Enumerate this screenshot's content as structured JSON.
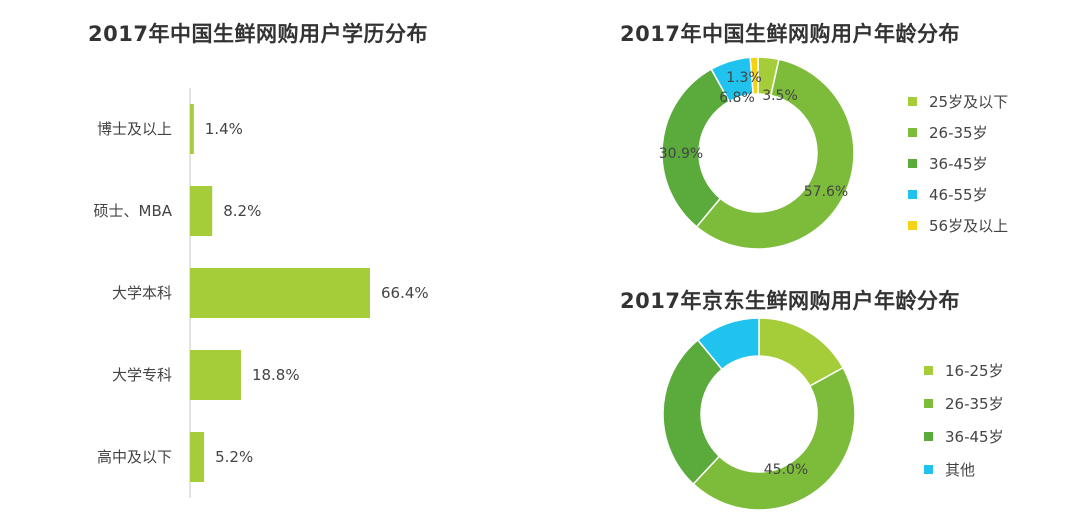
{
  "titles": {
    "edu": "2017年中国生鲜网购用户学历分布",
    "age_cn": "2017年中国生鲜网购用户年龄分布",
    "age_jd": "2017年京东生鲜网购用户年龄分布"
  },
  "colors": {
    "bar": "#a5cd39",
    "palette": [
      "#a5cd39",
      "#7dbb3a",
      "#5aaa3c",
      "#1fc3ee",
      "#f5d213"
    ]
  },
  "chart_data": [
    {
      "type": "bar",
      "orientation": "horizontal",
      "title": "2017年中国生鲜网购用户学历分布",
      "categories": [
        "博士及以上",
        "硕士、MBA",
        "大学本科",
        "大学专科",
        "高中及以下"
      ],
      "values": [
        1.4,
        8.2,
        66.4,
        18.8,
        5.2
      ],
      "value_labels": [
        "1.4%",
        "8.2%",
        "66.4%",
        "18.8%",
        "5.2%"
      ],
      "unit": "%",
      "grid": false
    },
    {
      "type": "pie",
      "style": "donut",
      "title": "2017年中国生鲜网购用户年龄分布",
      "categories": [
        "25岁及以下",
        "26-35岁",
        "36-45岁",
        "46-55岁",
        "56岁及以上"
      ],
      "values": [
        3.5,
        57.6,
        30.9,
        6.8,
        1.3
      ],
      "value_labels": [
        "3.5%",
        "57.6%",
        "30.9%",
        "6.8%",
        "1.3%"
      ],
      "legend": "right"
    },
    {
      "type": "pie",
      "style": "donut",
      "title": "2017年京东生鲜网购用户年龄分布",
      "categories": [
        "16-25岁",
        "26-35岁",
        "36-45岁",
        "其他"
      ],
      "values": [
        17.0,
        45.0,
        27.0,
        11.0
      ],
      "value_labels": [
        "",
        "45.0%",
        "",
        ""
      ],
      "legend": "right"
    }
  ]
}
